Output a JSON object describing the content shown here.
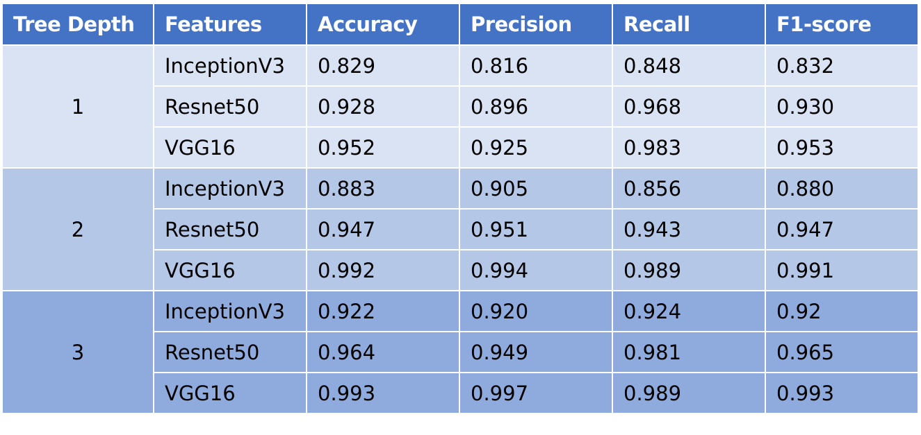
{
  "chart_data": {
    "type": "table",
    "columns": [
      "Tree Depth",
      "Features",
      "Accuracy",
      "Precision",
      "Recall",
      "F1-score"
    ],
    "groups": [
      {
        "depth": "1",
        "rows": [
          {
            "feature": "InceptionV3",
            "accuracy": "0.829",
            "precision": "0.816",
            "recall": "0.848",
            "f1": "0.832"
          },
          {
            "feature": "Resnet50",
            "accuracy": "0.928",
            "precision": "0.896",
            "recall": "0.968",
            "f1": "0.930"
          },
          {
            "feature": "VGG16",
            "accuracy": "0.952",
            "precision": "0.925",
            "recall": "0.983",
            "f1": "0.953"
          }
        ]
      },
      {
        "depth": "2",
        "rows": [
          {
            "feature": "InceptionV3",
            "accuracy": "0.883",
            "precision": "0.905",
            "recall": "0.856",
            "f1": "0.880"
          },
          {
            "feature": "Resnet50",
            "accuracy": "0.947",
            "precision": "0.951",
            "recall": "0.943",
            "f1": "0.947"
          },
          {
            "feature": "VGG16",
            "accuracy": "0.992",
            "precision": "0.994",
            "recall": "0.989",
            "f1": "0.991"
          }
        ]
      },
      {
        "depth": "3",
        "rows": [
          {
            "feature": "InceptionV3",
            "accuracy": "0.922",
            "precision": "0.920",
            "recall": "0.924",
            "f1": "0.92"
          },
          {
            "feature": "Resnet50",
            "accuracy": "0.964",
            "precision": "0.949",
            "recall": "0.981",
            "f1": "0.965"
          },
          {
            "feature": "VGG16",
            "accuracy": "0.993",
            "precision": "0.997",
            "recall": "0.989",
            "f1": "0.993"
          }
        ]
      }
    ],
    "colors": {
      "header_bg": "#4472c4",
      "header_text": "#ffffff",
      "group_1_bg": "#dae3f3",
      "group_2_bg": "#b4c7e7",
      "group_3_bg": "#8faadc",
      "border": "#ffffff"
    }
  }
}
